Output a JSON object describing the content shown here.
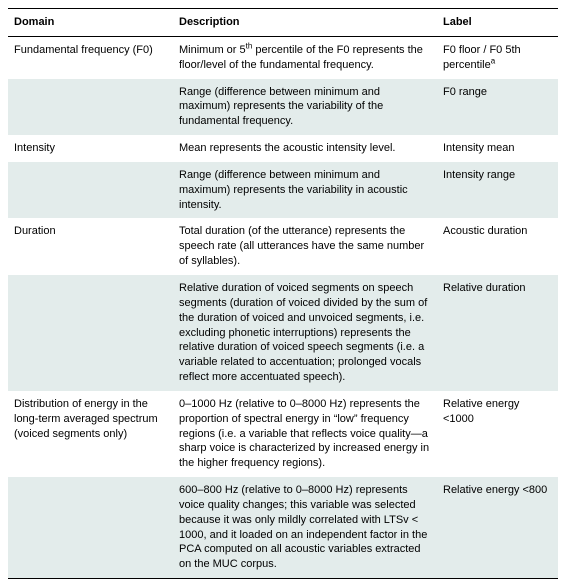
{
  "table": {
    "columns": [
      "Domain",
      "Description",
      "Label"
    ],
    "col_widths": [
      "30%",
      "48%",
      "22%"
    ],
    "header_fontsize": 11,
    "body_fontsize": 11,
    "border_color": "#000000",
    "alt_row_bg": "#e3eceb",
    "background_color": "#ffffff",
    "text_color": "#000000",
    "rows": [
      {
        "domain": "Fundamental frequency (F0)",
        "description_html": "Minimum or 5<sup>th</sup> percentile of the F0 represents the floor/level of the fundamental frequency.",
        "label_html": "F0 floor / F0 5th percentile<sup>a</sup>",
        "alt": false
      },
      {
        "domain": "",
        "description_html": "Range (difference between minimum and maximum) represents the variability of the fundamental frequency.",
        "label_html": "F0 range",
        "alt": true
      },
      {
        "domain": "Intensity",
        "description_html": "Mean represents the acoustic intensity level.",
        "label_html": "Intensity mean",
        "alt": false
      },
      {
        "domain": "",
        "description_html": "Range (difference between minimum and maximum) represents the variability in acoustic intensity.",
        "label_html": "Intensity range",
        "alt": true
      },
      {
        "domain": "Duration",
        "description_html": "Total duration (of the utterance) represents the speech rate (all utterances have the same number of syllables).",
        "label_html": "Acoustic duration",
        "alt": false
      },
      {
        "domain": "",
        "description_html": "Relative duration of voiced segments on speech segments (duration of voiced divided by the sum of the duration of voiced and unvoiced segments, i.e. excluding phonetic interruptions) represents the relative duration of voiced speech segments (i.e. a variable related to accentuation; prolonged vocals reflect more accentuated speech).",
        "label_html": "Relative duration",
        "alt": true
      },
      {
        "domain": "Distribution of energy in the long-term averaged spectrum (voiced segments only)",
        "description_html": "0–1000 Hz (relative to 0–8000 Hz) represents the proportion of spectral energy in “low” frequency regions (i.e. a variable that reflects voice quality—a sharp voice is characterized by increased energy in the higher frequency regions).",
        "label_html": "Relative energy &lt;1000",
        "alt": false
      },
      {
        "domain": "",
        "description_html": "600–800 Hz (relative to 0–8000 Hz) represents voice quality changes; this variable was selected because it was only mildly correlated with LTSv &lt; 1000, and it loaded on an independent factor in the PCA computed on all acoustic variables extracted on the MUC corpus.",
        "label_html": "Relative energy &lt;800",
        "alt": true
      }
    ]
  }
}
